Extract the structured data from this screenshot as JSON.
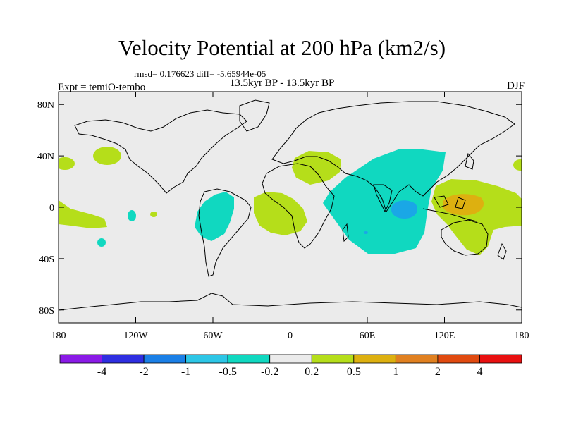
{
  "header": {
    "title": "Velocity Potential at 200 hPa (km2/s)",
    "stats": "rmsd= 0.176623 diff= -5.65944e-05",
    "subtitle": "13.5kyr BP - 13.5kyr BP",
    "experiment": "Expt = temiO-tembo",
    "season": "DJF"
  },
  "axes": {
    "x_ticks": [
      "180",
      "120W",
      "60W",
      "0",
      "60E",
      "120E",
      "180"
    ],
    "x_values": [
      -180,
      -120,
      -60,
      0,
      60,
      120,
      180
    ],
    "y_ticks": [
      "80N",
      "40N",
      "0",
      "40S",
      "80S"
    ],
    "y_values": [
      80,
      40,
      0,
      -40,
      -80
    ],
    "lon_range": [
      -180,
      180
    ],
    "lat_range": [
      -90,
      90
    ]
  },
  "colorbar": {
    "labels": [
      "-4",
      "-2",
      "-1",
      "-0.5",
      "-0.2",
      "0.2",
      "0.5",
      "1",
      "2",
      "4"
    ],
    "colors": [
      "#8A1AE6",
      "#2E2EE0",
      "#1A7FE6",
      "#2DC6E6",
      "#10D8C0",
      "#EBEBEB",
      "#B5DE1A",
      "#DDB010",
      "#E08020",
      "#E04A10",
      "#E81010"
    ]
  },
  "colors": {
    "background": "#EBEBEB",
    "coast": "#000000"
  },
  "chart_data": {
    "type": "filled-contour-map",
    "title": "Velocity Potential at 200 hPa (km2/s)",
    "levels": [
      -4,
      -2,
      -1,
      -0.5,
      -0.2,
      0.2,
      0.5,
      1,
      2,
      4
    ],
    "regions": [
      {
        "name": "indian-ocean-asia-negative",
        "level_range": [
          -0.5,
          -0.2
        ],
        "center": [
          75,
          5
        ]
      },
      {
        "name": "bay-of-bengal-minimum",
        "level_range": [
          -1,
          -0.5
        ],
        "center": [
          88,
          0
        ]
      },
      {
        "name": "south-america-negative",
        "level_range": [
          -0.5,
          -0.2
        ],
        "center": [
          -55,
          -5
        ]
      },
      {
        "name": "maritime-continent-positive",
        "level_range": [
          0.2,
          0.5
        ],
        "center": [
          130,
          -5
        ]
      },
      {
        "name": "maritime-continent-maximum",
        "level_range": [
          0.5,
          1
        ],
        "center": [
          128,
          2
        ]
      },
      {
        "name": "south-atlantic-positive",
        "level_range": [
          0.2,
          0.5
        ],
        "center": [
          -15,
          -5
        ]
      },
      {
        "name": "mediterranean-positive",
        "level_range": [
          0.2,
          0.5
        ],
        "center": [
          32,
          35
        ]
      },
      {
        "name": "north-pacific-positive",
        "level_range": [
          0.2,
          0.5
        ],
        "center": [
          -145,
          38
        ]
      }
    ]
  }
}
